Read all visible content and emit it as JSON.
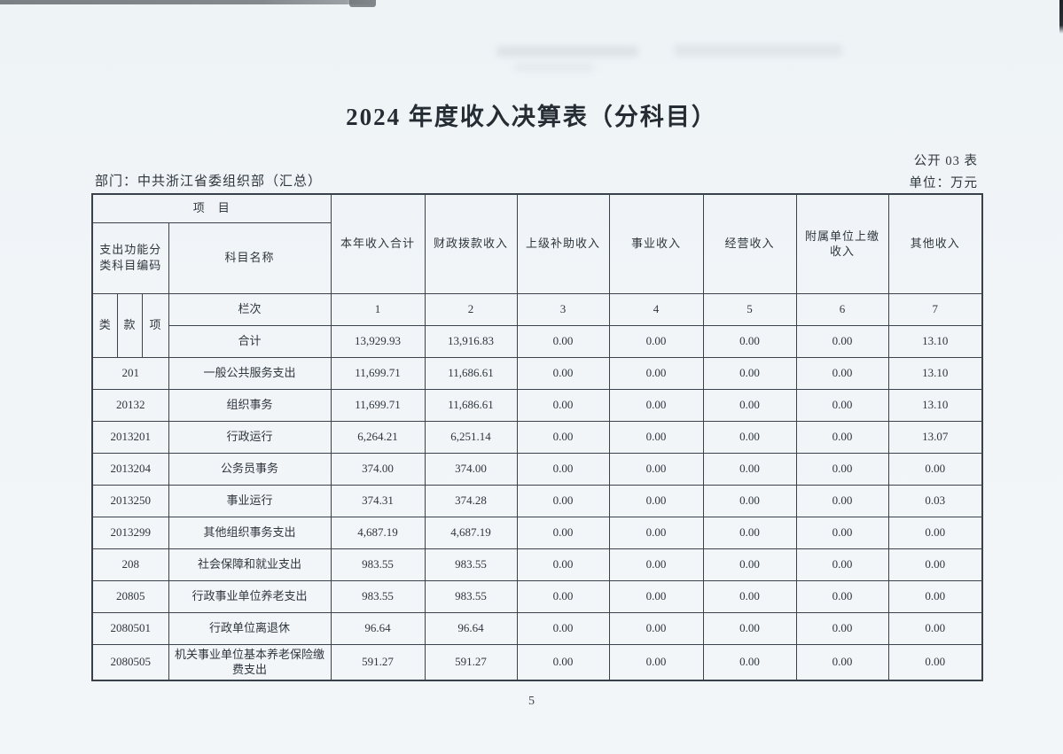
{
  "page": {
    "title": "2024 年度收入决算表（分科目）",
    "table_code": "公开 03 表",
    "unit": "单位：万元",
    "department": "部门：中共浙江省委组织部（汇总）",
    "page_number": "5"
  },
  "table": {
    "header": {
      "project": "项　目",
      "code_label": "支出功能分类科目编码",
      "subject_name": "科目名称",
      "class_label": "类",
      "section_label": "款",
      "item_label": "项",
      "column_row_label": "栏次",
      "column_numbers": [
        "1",
        "2",
        "3",
        "4",
        "5",
        "6",
        "7"
      ],
      "value_columns": [
        "本年收入合计",
        "财政拨款收入",
        "上级补助收入",
        "事业收入",
        "经营收入",
        "附属单位上缴收入",
        "其他收入"
      ]
    },
    "total_row": {
      "label": "合计",
      "values": [
        "13,929.93",
        "13,916.83",
        "0.00",
        "0.00",
        "0.00",
        "0.00",
        "13.10"
      ]
    },
    "rows": [
      {
        "code": "201",
        "name": "一般公共服务支出",
        "values": [
          "11,699.71",
          "11,686.61",
          "0.00",
          "0.00",
          "0.00",
          "0.00",
          "13.10"
        ]
      },
      {
        "code": "20132",
        "name": "组织事务",
        "values": [
          "11,699.71",
          "11,686.61",
          "0.00",
          "0.00",
          "0.00",
          "0.00",
          "13.10"
        ]
      },
      {
        "code": "2013201",
        "name": "行政运行",
        "values": [
          "6,264.21",
          "6,251.14",
          "0.00",
          "0.00",
          "0.00",
          "0.00",
          "13.07"
        ]
      },
      {
        "code": "2013204",
        "name": "公务员事务",
        "values": [
          "374.00",
          "374.00",
          "0.00",
          "0.00",
          "0.00",
          "0.00",
          "0.00"
        ]
      },
      {
        "code": "2013250",
        "name": "事业运行",
        "values": [
          "374.31",
          "374.28",
          "0.00",
          "0.00",
          "0.00",
          "0.00",
          "0.03"
        ]
      },
      {
        "code": "2013299",
        "name": "其他组织事务支出",
        "values": [
          "4,687.19",
          "4,687.19",
          "0.00",
          "0.00",
          "0.00",
          "0.00",
          "0.00"
        ]
      },
      {
        "code": "208",
        "name": "社会保障和就业支出",
        "values": [
          "983.55",
          "983.55",
          "0.00",
          "0.00",
          "0.00",
          "0.00",
          "0.00"
        ]
      },
      {
        "code": "20805",
        "name": "行政事业单位养老支出",
        "values": [
          "983.55",
          "983.55",
          "0.00",
          "0.00",
          "0.00",
          "0.00",
          "0.00"
        ]
      },
      {
        "code": "2080501",
        "name": "行政单位离退休",
        "values": [
          "96.64",
          "96.64",
          "0.00",
          "0.00",
          "0.00",
          "0.00",
          "0.00"
        ]
      },
      {
        "code": "2080505",
        "name": "机关事业单位基本养老保险缴费支出",
        "values": [
          "591.27",
          "591.27",
          "0.00",
          "0.00",
          "0.00",
          "0.00",
          "0.00"
        ]
      }
    ]
  }
}
